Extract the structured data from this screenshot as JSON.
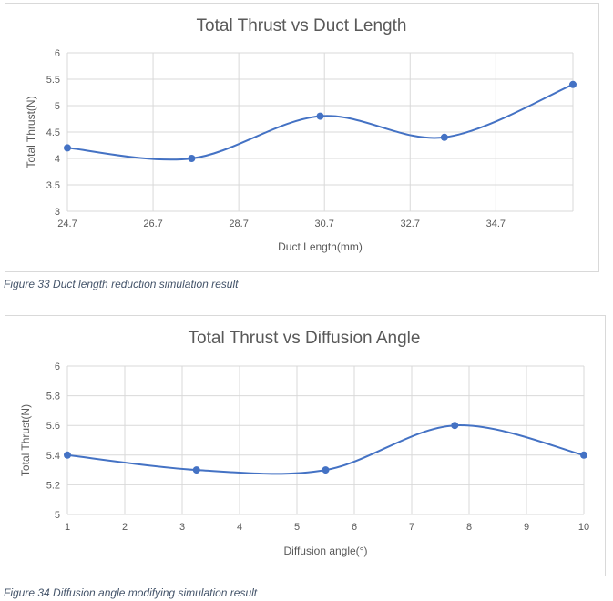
{
  "chart_data": [
    {
      "type": "line",
      "title": "Total Thrust vs Duct Length",
      "xlabel": "Duct Length(mm)",
      "ylabel": "Total Thrust(N)",
      "xlim": [
        24.7,
        36.5
      ],
      "ylim": [
        3,
        6
      ],
      "x_ticks": [
        "24.7",
        "26.7",
        "28.7",
        "30.7",
        "32.7",
        "34.7"
      ],
      "y_ticks": [
        "3",
        "3.5",
        "4",
        "4.5",
        "5",
        "5.5",
        "6"
      ],
      "grid": true,
      "smooth": true,
      "series": [
        {
          "x": [
            24.7,
            27.6,
            30.6,
            33.5,
            36.5
          ],
          "y": [
            4.2,
            4.0,
            4.8,
            4.4,
            5.4
          ]
        }
      ],
      "color": "#4472c4"
    },
    {
      "type": "line",
      "title": "Total Thrust vs  Diffusion Angle",
      "xlabel": "Diffusion angle(°)",
      "ylabel": "Total Thrust(N)",
      "xlim": [
        1,
        10
      ],
      "ylim": [
        5,
        6
      ],
      "x_ticks": [
        "1",
        "2",
        "3",
        "4",
        "5",
        "6",
        "7",
        "8",
        "9",
        "10"
      ],
      "y_ticks": [
        "5",
        "5.2",
        "5.4",
        "5.6",
        "5.8",
        "6"
      ],
      "grid": true,
      "smooth": true,
      "series": [
        {
          "x": [
            1,
            3.25,
            5.5,
            7.75,
            10
          ],
          "y": [
            5.4,
            5.3,
            5.3,
            5.6,
            5.4
          ]
        }
      ],
      "color": "#4472c4"
    }
  ],
  "captions": [
    "Figure 33 Duct length reduction simulation result",
    "Figure 34 Diffusion angle modifying simulation result"
  ]
}
